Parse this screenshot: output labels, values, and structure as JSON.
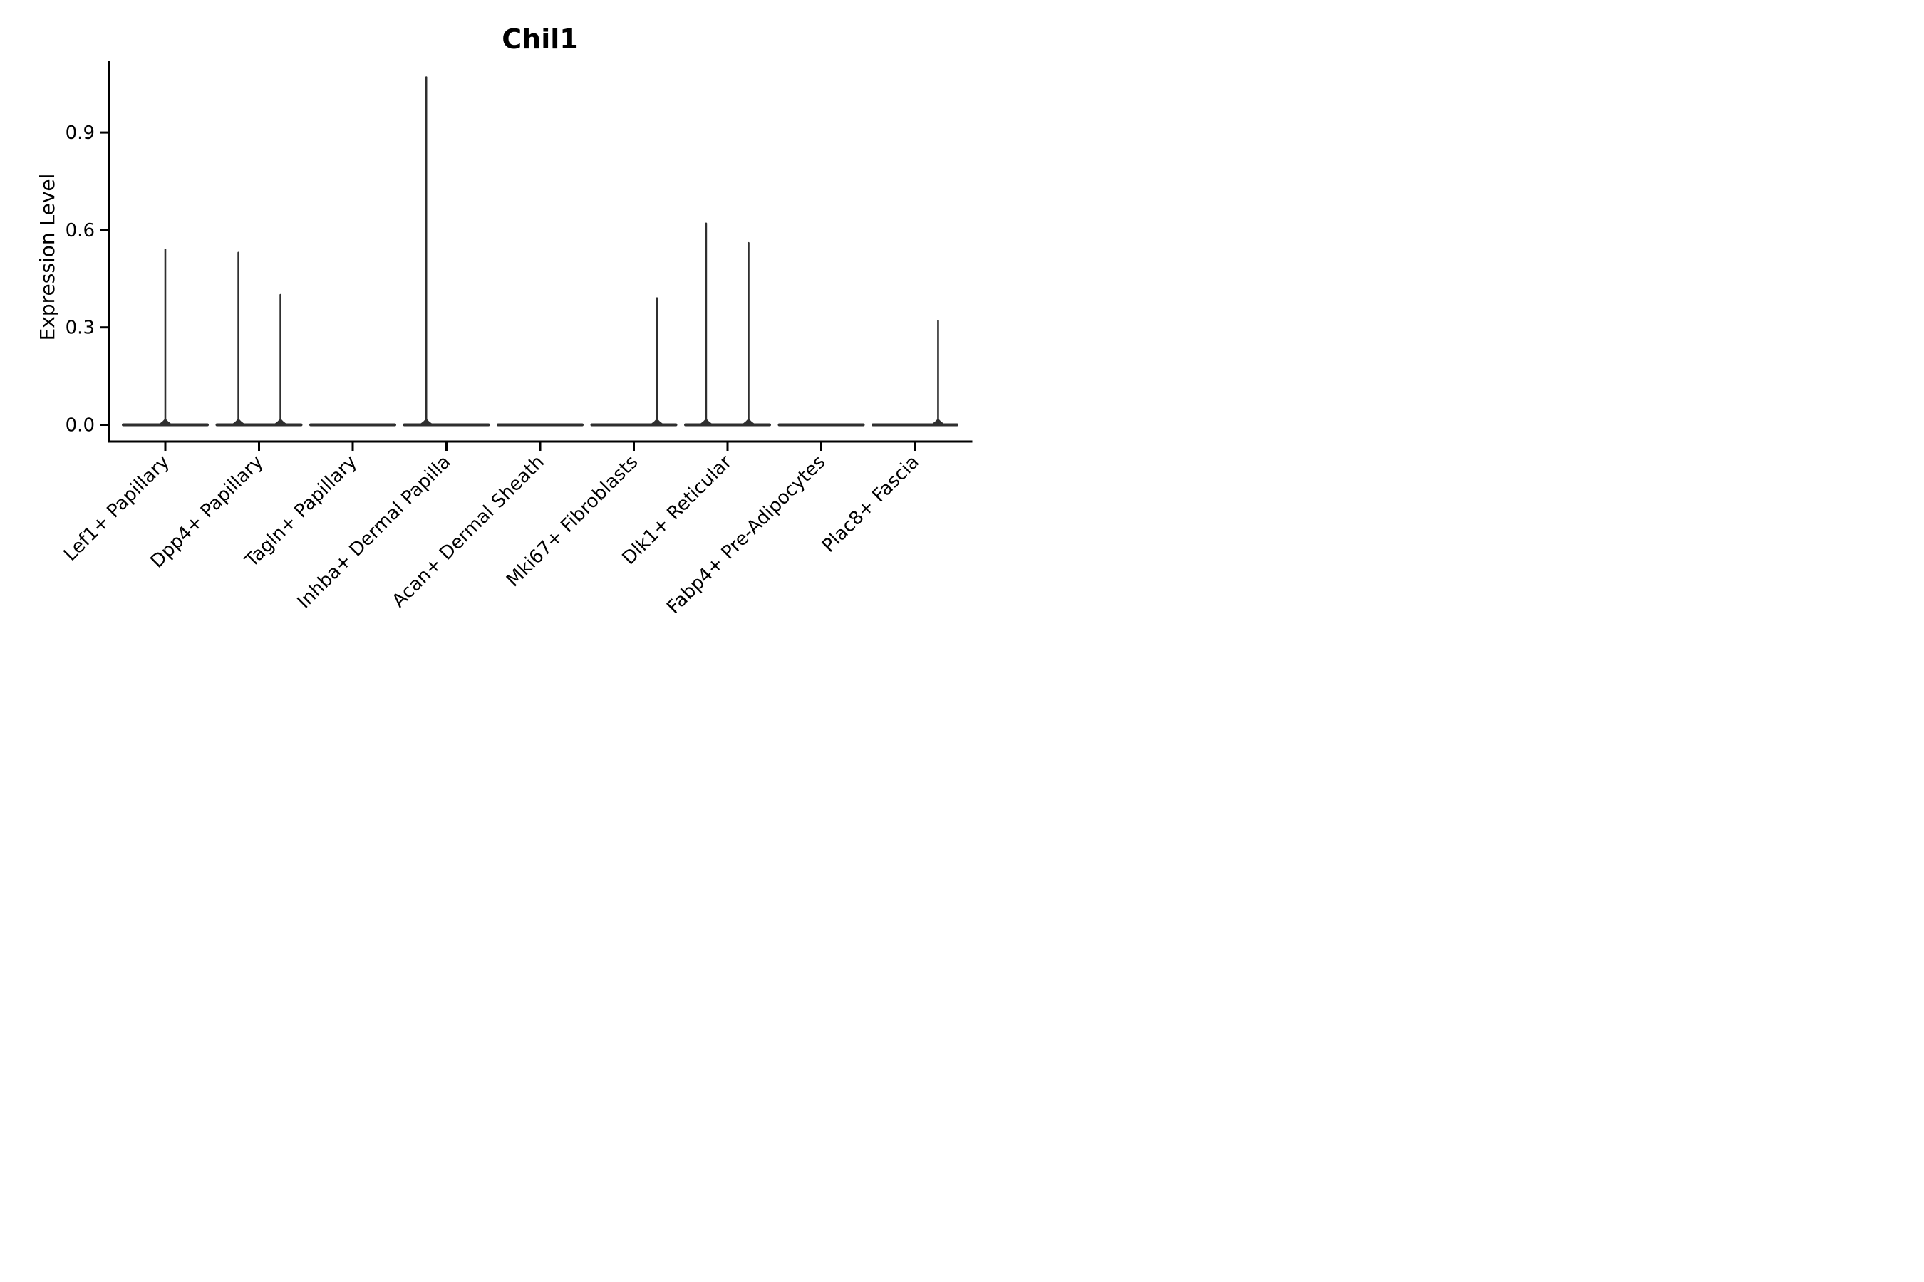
{
  "chart_data": {
    "type": "violin",
    "title": "Chil1",
    "xlabel": "",
    "ylabel": "Expression Level",
    "ylim": [
      -0.05,
      1.12
    ],
    "grid": false,
    "legend": "none",
    "yticks": [
      {
        "label": "0.0",
        "value": 0.0
      },
      {
        "label": "0.3",
        "value": 0.3
      },
      {
        "label": "0.6",
        "value": 0.6
      },
      {
        "label": "0.9",
        "value": 0.9
      }
    ],
    "categories": [
      "Lef1+ Papillary",
      "Dpp4+ Papillary",
      "Tagln+ Papillary",
      "Inhba+ Dermal Papilla",
      "Acan+ Dermal Sheath",
      "Mki67+ Fibroblasts",
      "Dlk1+ Reticular",
      "Fabp4+ Pre-Adipocytes",
      "Plac8+ Fascia"
    ],
    "series": [
      {
        "name": "Lef1+ Papillary",
        "baseline_value": 0,
        "spikes": [
          {
            "offset": 0.0,
            "value": 0.54
          }
        ]
      },
      {
        "name": "Dpp4+ Papillary",
        "baseline_value": 0,
        "spikes": [
          {
            "offset": -0.49,
            "value": 0.53
          },
          {
            "offset": 0.51,
            "value": 0.4
          }
        ]
      },
      {
        "name": "Tagln+ Papillary",
        "baseline_value": 0,
        "spikes": []
      },
      {
        "name": "Inhba+ Dermal Papilla",
        "baseline_value": 0,
        "spikes": [
          {
            "offset": -0.48,
            "value": 1.07
          }
        ]
      },
      {
        "name": "Acan+ Dermal Sheath",
        "baseline_value": 0,
        "spikes": []
      },
      {
        "name": "Mki67+ Fibroblasts",
        "baseline_value": 0,
        "spikes": [
          {
            "offset": 0.55,
            "value": 0.39
          }
        ]
      },
      {
        "name": "Dlk1+ Reticular",
        "baseline_value": 0,
        "spikes": [
          {
            "offset": -0.51,
            "value": 0.62
          },
          {
            "offset": 0.5,
            "value": 0.56
          }
        ]
      },
      {
        "name": "Fabp4+ Pre-Adipocytes",
        "baseline_value": 0,
        "spikes": []
      },
      {
        "name": "Plac8+ Fascia",
        "baseline_value": 0,
        "spikes": [
          {
            "offset": 0.55,
            "value": 0.32
          }
        ]
      }
    ],
    "violin_width_fraction": 0.9,
    "colors": {
      "violin": "#2f2f2f",
      "axis": "#000000",
      "text": "#000000",
      "background": "#ffffff"
    }
  }
}
